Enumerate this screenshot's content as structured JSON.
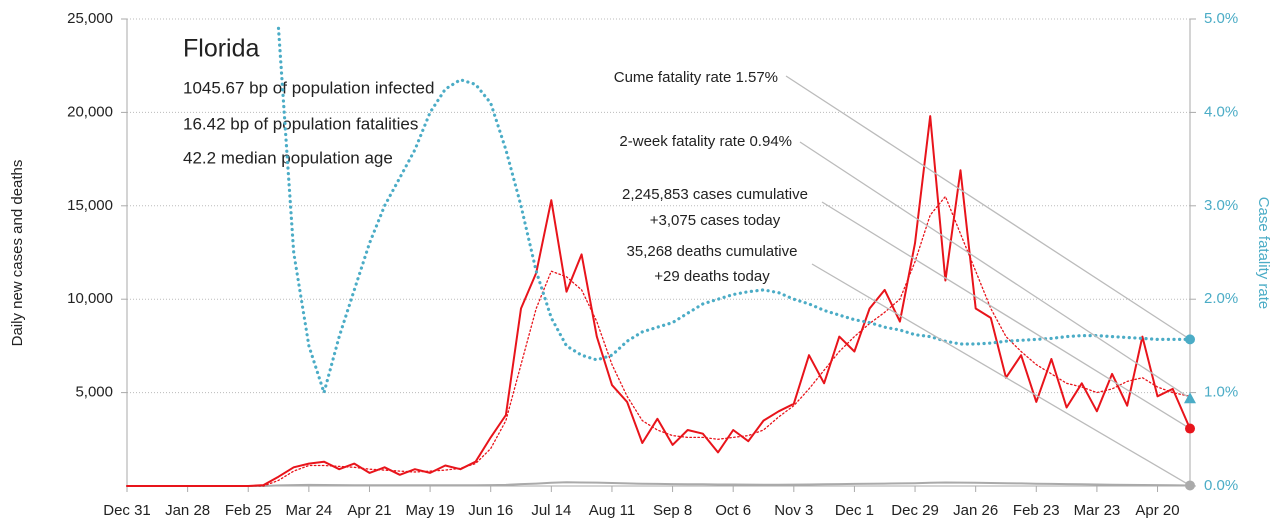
{
  "chart_data": {
    "type": "line",
    "title": "Florida",
    "subtitle_lines": [
      "1045.67 bp of population infected",
      "16.42 bp of population fatalities",
      "42.2 median population age"
    ],
    "y_label": "Daily new cases and deaths",
    "y2_label": "Case fatality rate",
    "annotations": [
      [
        "Cume fatality rate 1.57%"
      ],
      [
        "2-week fatality rate 0.94%"
      ],
      [
        "2,245,853 cases cumulative",
        "+3,075 cases today"
      ],
      [
        "35,268 deaths cumulative",
        "+29 deaths today"
      ]
    ],
    "x": [
      0,
      7,
      14,
      21,
      28,
      35,
      42,
      49,
      56,
      63,
      70,
      77,
      84,
      91,
      98,
      105,
      112,
      119,
      126,
      133,
      140,
      147,
      154,
      161,
      168,
      175,
      182,
      189,
      196,
      203,
      210,
      217,
      224,
      231,
      238,
      245,
      252,
      259,
      266,
      273,
      280,
      287,
      294,
      301,
      308,
      315,
      322,
      329,
      336,
      343,
      350,
      357,
      364,
      371,
      378,
      385,
      392,
      399,
      406,
      413,
      420,
      427,
      434,
      441,
      448,
      455,
      462,
      469,
      476,
      483,
      491
    ],
    "xlim": [
      0,
      491
    ],
    "xticks": [
      {
        "value": 0,
        "label": "Dec 31"
      },
      {
        "value": 28,
        "label": "Jan 28"
      },
      {
        "value": 56,
        "label": "Feb 25"
      },
      {
        "value": 84,
        "label": "Mar 24"
      },
      {
        "value": 112,
        "label": "Apr 21"
      },
      {
        "value": 140,
        "label": "May 19"
      },
      {
        "value": 168,
        "label": "Jun 16"
      },
      {
        "value": 196,
        "label": "Jul 14"
      },
      {
        "value": 224,
        "label": "Aug 11"
      },
      {
        "value": 252,
        "label": "Sep 8"
      },
      {
        "value": 280,
        "label": "Oct 6"
      },
      {
        "value": 308,
        "label": "Nov 3"
      },
      {
        "value": 336,
        "label": "Dec 1"
      },
      {
        "value": 364,
        "label": "Dec 29"
      },
      {
        "value": 392,
        "label": "Jan 26"
      },
      {
        "value": 420,
        "label": "Feb 23"
      },
      {
        "value": 448,
        "label": "Mar 23"
      },
      {
        "value": 476,
        "label": "Apr 20"
      }
    ],
    "ylim": [
      0,
      25000
    ],
    "yticks": [
      {
        "value": 5000,
        "label": "5,000"
      },
      {
        "value": 10000,
        "label": "10,000"
      },
      {
        "value": 15000,
        "label": "15,000"
      },
      {
        "value": 20000,
        "label": "20,000"
      },
      {
        "value": 25000,
        "label": "25,000"
      }
    ],
    "y2lim": [
      0,
      5
    ],
    "y2ticks": [
      {
        "value": 0,
        "label": "0.0%"
      },
      {
        "value": 1,
        "label": "1.0%"
      },
      {
        "value": 2,
        "label": "2.0%"
      },
      {
        "value": 3,
        "label": "3.0%"
      },
      {
        "value": 4,
        "label": "4.0%"
      },
      {
        "value": 5,
        "label": "5.0%"
      }
    ],
    "grid": true,
    "series": [
      {
        "color": "#e8141b",
        "style": "solid",
        "values": [
          0,
          0,
          0,
          0,
          0,
          0,
          0,
          0,
          0,
          50,
          500,
          1000,
          1200,
          1300,
          900,
          1200,
          700,
          1000,
          600,
          900,
          700,
          1100,
          900,
          1300,
          2600,
          3800,
          9500,
          11400,
          15300,
          10400,
          12400,
          8000,
          5400,
          4500,
          2300,
          3600,
          2200,
          3000,
          2800,
          1800,
          3000,
          2400,
          3500,
          4000,
          4400,
          7000,
          5500,
          8000,
          7200,
          9500,
          10500,
          8800,
          13000,
          19800,
          11000,
          16900,
          9500,
          9000,
          5800,
          7000,
          4500,
          6800,
          4200,
          5500,
          4000,
          6000,
          4300,
          8000,
          4800,
          5200,
          3075
        ]
      },
      {
        "color": "#e8141b",
        "style": "dotted",
        "values": [
          0,
          0,
          0,
          0,
          0,
          0,
          0,
          0,
          0,
          0,
          300,
          800,
          1100,
          1100,
          1050,
          1000,
          900,
          850,
          800,
          750,
          800,
          850,
          950,
          1200,
          2000,
          3500,
          6500,
          9500,
          11500,
          11200,
          10500,
          8800,
          6500,
          4800,
          3500,
          3000,
          2700,
          2600,
          2600,
          2500,
          2600,
          2700,
          3000,
          3700,
          4300,
          5200,
          6200,
          7200,
          8000,
          8700,
          9300,
          10000,
          12000,
          14500,
          15500,
          13500,
          11500,
          9500,
          8000,
          7200,
          6500,
          6000,
          5500,
          5300,
          5000,
          5200,
          5600,
          5800,
          5300,
          5000,
          4800
        ]
      },
      {
        "color": "#aaaaaa",
        "style": "solid",
        "values": [
          0,
          0,
          0,
          0,
          0,
          0,
          0,
          0,
          0,
          0,
          30,
          50,
          60,
          55,
          50,
          45,
          40,
          45,
          40,
          45,
          40,
          35,
          40,
          45,
          50,
          60,
          100,
          130,
          170,
          200,
          190,
          180,
          160,
          140,
          120,
          110,
          100,
          95,
          90,
          80,
          80,
          75,
          70,
          70,
          75,
          80,
          90,
          100,
          110,
          120,
          130,
          140,
          150,
          170,
          190,
          180,
          170,
          160,
          150,
          140,
          120,
          110,
          100,
          90,
          80,
          70,
          60,
          55,
          50,
          45,
          29
        ]
      },
      {
        "color": "#4bacc6",
        "style": "dotted",
        "axis": "y2",
        "values": [
          null,
          null,
          null,
          null,
          null,
          null,
          null,
          null,
          null,
          null,
          4.9,
          2.5,
          1.5,
          1.0,
          1.6,
          2.1,
          2.6,
          3.0,
          3.3,
          3.6,
          4.0,
          4.25,
          4.35,
          4.3,
          4.1,
          3.6,
          3.0,
          2.3,
          1.8,
          1.5,
          1.4,
          1.35,
          1.4,
          1.55,
          1.65,
          1.7,
          1.75,
          1.85,
          1.95,
          2.0,
          2.05,
          2.08,
          2.1,
          2.07,
          2.0,
          1.95,
          1.88,
          1.83,
          1.78,
          1.75,
          1.7,
          1.67,
          1.62,
          1.6,
          1.55,
          1.52,
          1.52,
          1.53,
          1.55,
          1.56,
          1.57,
          1.58,
          1.6,
          1.61,
          1.61,
          1.6,
          1.59,
          1.58,
          1.57,
          1.57,
          1.57
        ]
      }
    ],
    "markers": [
      {
        "value": 1.57,
        "axis": "y2",
        "color": "#4bacc6",
        "shape": "circle"
      },
      {
        "value": 0.94,
        "axis": "y2",
        "color": "#4bacc6",
        "shape": "triangle"
      },
      {
        "value": 3075,
        "axis": "y",
        "color": "#e8141b",
        "shape": "circle"
      },
      {
        "value": 29,
        "axis": "y",
        "color": "#aaaaaa",
        "shape": "circle"
      }
    ]
  }
}
